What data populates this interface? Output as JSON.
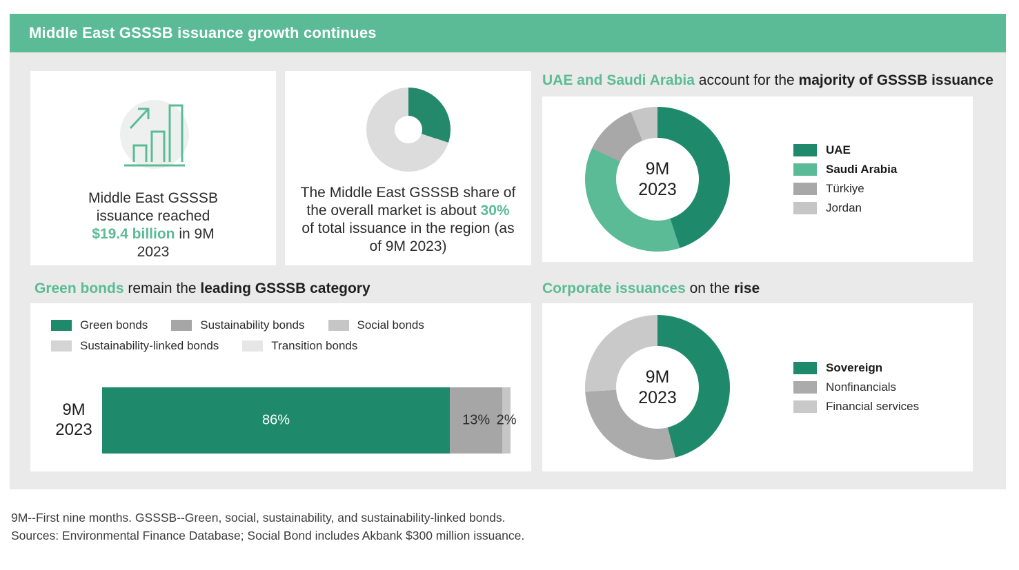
{
  "title_bar": {
    "title": "Middle East GSSSB issuance growth continues"
  },
  "stat_card": {
    "text_before": "Middle East GSSSB issuance reached",
    "highlight": "$19.4 billion",
    "text_after": "in 9M 2023"
  },
  "share_card": {
    "text_before": "The Middle East GSSSB share of the overall market is about",
    "highlight": "30%",
    "text_after": "of total issuance in the region (as of 9M 2023)"
  },
  "sections": {
    "countries": {
      "heading_highlight": "UAE and Saudi Arabia",
      "heading_mid": " account for the ",
      "heading_bold": "majority of GSSSB issuance",
      "center_label": "9M\n2023"
    },
    "categories": {
      "heading_highlight": "Green bonds",
      "heading_mid": " remain the ",
      "heading_bold": "leading GSSSB category",
      "row_label": "9M\n2023"
    },
    "corporate": {
      "heading_highlight": "Corporate issuances",
      "heading_mid": " on the ",
      "heading_bold": "rise",
      "center_label": "9M\n2023"
    }
  },
  "footnotes": [
    "9M--First nine months. GSSSB--Green, social, sustainability, and sustainability-linked bonds.",
    "Sources: Environmental Finance Database; Social Bond includes Akbank $300 million issuance."
  ],
  "colors": {
    "header_bg": "#5bbb97",
    "accent_light_green": "#5bbb97",
    "accent_dark_green": "#1e8a6b",
    "board_bg": "#eaeaea",
    "card_bg": "#ffffff"
  },
  "chart_data": [
    {
      "type": "pie",
      "name": "middle-east-gsssb-market-share",
      "title": "The Middle East GSSSB share of the overall market (as of 9M 2023)",
      "legend_position": "none",
      "segments": [
        {
          "label": "Middle East GSSSB share",
          "value": 30,
          "color": "#23896a",
          "bold": false
        },
        {
          "label": "Rest of total issuance in the region",
          "value": 70,
          "color": "#dcdcdc",
          "bold": false
        }
      ]
    },
    {
      "type": "pie",
      "name": "gsssb-issuance-by-country",
      "title": "UAE and Saudi Arabia account for the majority of GSSSB issuance",
      "center_label": "9M\n2023",
      "legend_position": "right",
      "segments": [
        {
          "label": "UAE",
          "value": 45,
          "color": "#1e8a6b",
          "bold": true
        },
        {
          "label": "Saudi Arabia",
          "value": 37,
          "color": "#5bbb97",
          "bold": true
        },
        {
          "label": "Türkiye",
          "value": 12,
          "color": "#a8a8a8",
          "bold": false
        },
        {
          "label": "Jordan",
          "value": 6,
          "color": "#c6c6c6",
          "bold": false
        }
      ]
    },
    {
      "type": "bar",
      "name": "gsssb-issuance-by-category",
      "title": "Green bonds remain the leading GSSSB category",
      "orientation": "horizontal",
      "stacked": true,
      "categories": [
        "9M 2023"
      ],
      "data_labels": "percent",
      "series": [
        {
          "name": "Green bonds",
          "values": [
            86
          ],
          "color": "#1e8a6b",
          "label_color": "#ffffff"
        },
        {
          "name": "Sustainability bonds",
          "values": [
            13
          ],
          "color": "#a6a6a6",
          "label_color": "#2b2b2b"
        },
        {
          "name": "Social bonds",
          "values": [
            2
          ],
          "color": "#c6c6c6",
          "label_color": "#2b2b2b"
        },
        {
          "name": "Sustainability-linked bonds",
          "values": [
            0
          ],
          "color": "#d4d4d4"
        },
        {
          "name": "Transition bonds",
          "values": [
            0
          ],
          "color": "#e6e6e6"
        }
      ]
    },
    {
      "type": "pie",
      "name": "gsssb-issuance-by-issuer-type",
      "title": "Corporate issuances on the rise",
      "center_label": "9M\n2023",
      "legend_position": "right",
      "segments": [
        {
          "label": "Sovereign",
          "value": 46,
          "color": "#1e8a6b",
          "bold": true
        },
        {
          "label": "Nonfinancials",
          "value": 28,
          "color": "#ababab",
          "bold": false
        },
        {
          "label": "Financial services",
          "value": 26,
          "color": "#c9c9c9",
          "bold": false
        }
      ]
    }
  ]
}
